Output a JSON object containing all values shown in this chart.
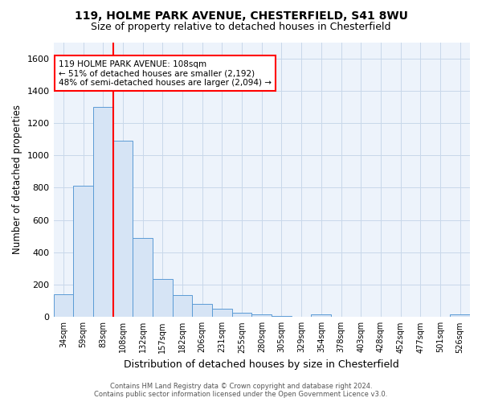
{
  "title_line1": "119, HOLME PARK AVENUE, CHESTERFIELD, S41 8WU",
  "title_line2": "Size of property relative to detached houses in Chesterfield",
  "xlabel": "Distribution of detached houses by size in Chesterfield",
  "ylabel": "Number of detached properties",
  "bar_color": "#d6e4f5",
  "bar_edge_color": "#5b9bd5",
  "grid_color": "#c8d8ea",
  "background_color": "#edf3fb",
  "categories": [
    "34sqm",
    "59sqm",
    "83sqm",
    "108sqm",
    "132sqm",
    "157sqm",
    "182sqm",
    "206sqm",
    "231sqm",
    "255sqm",
    "280sqm",
    "305sqm",
    "329sqm",
    "354sqm",
    "378sqm",
    "403sqm",
    "428sqm",
    "452sqm",
    "477sqm",
    "501sqm",
    "526sqm"
  ],
  "values": [
    140,
    810,
    1300,
    1090,
    490,
    235,
    135,
    80,
    50,
    28,
    15,
    5,
    3,
    14,
    2,
    0,
    0,
    0,
    0,
    0,
    14
  ],
  "ylim": [
    0,
    1700
  ],
  "yticks": [
    0,
    200,
    400,
    600,
    800,
    1000,
    1200,
    1400,
    1600
  ],
  "property_bar_index": 3,
  "annotation_text_line1": "119 HOLME PARK AVENUE: 108sqm",
  "annotation_text_line2": "← 51% of detached houses are smaller (2,192)",
  "annotation_text_line3": "48% of semi-detached houses are larger (2,094) →",
  "ann_box_color": "red",
  "footnote_line1": "Contains HM Land Registry data © Crown copyright and database right 2024.",
  "footnote_line2": "Contains public sector information licensed under the Open Government Licence v3.0."
}
